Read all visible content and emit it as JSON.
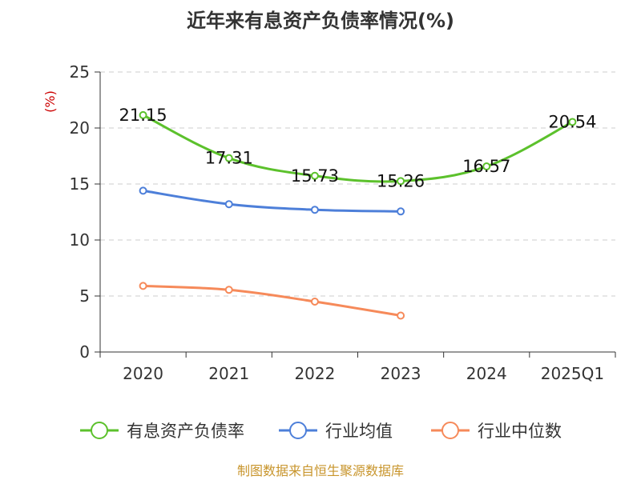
{
  "chart_data": {
    "type": "line",
    "title": "近年来有息资产负债率情况(%)",
    "ylabel": "(%)",
    "xlabel": "",
    "categories": [
      "2020",
      "2021",
      "2022",
      "2023",
      "2024",
      "2025Q1"
    ],
    "ylim": [
      0,
      25
    ],
    "yticks": [
      0,
      5,
      10,
      15,
      20,
      25
    ],
    "grid": true,
    "legend_position": "bottom",
    "series": [
      {
        "name": "有息资产负债率",
        "color": "#5cc12c",
        "values": [
          21.15,
          17.31,
          15.73,
          15.26,
          16.57,
          20.54
        ],
        "labels": [
          "21.15",
          "17.31",
          "15.73",
          "15.26",
          "16.57",
          "20.54"
        ]
      },
      {
        "name": "行业均值",
        "color": "#4d7fd9",
        "values": [
          14.4,
          13.2,
          12.7,
          12.55,
          null,
          null
        ]
      },
      {
        "name": "行业中位数",
        "color": "#f68a5a",
        "values": [
          5.9,
          5.55,
          4.5,
          3.25,
          null,
          null
        ]
      }
    ],
    "source": "制图数据来自恒生聚源数据库"
  }
}
